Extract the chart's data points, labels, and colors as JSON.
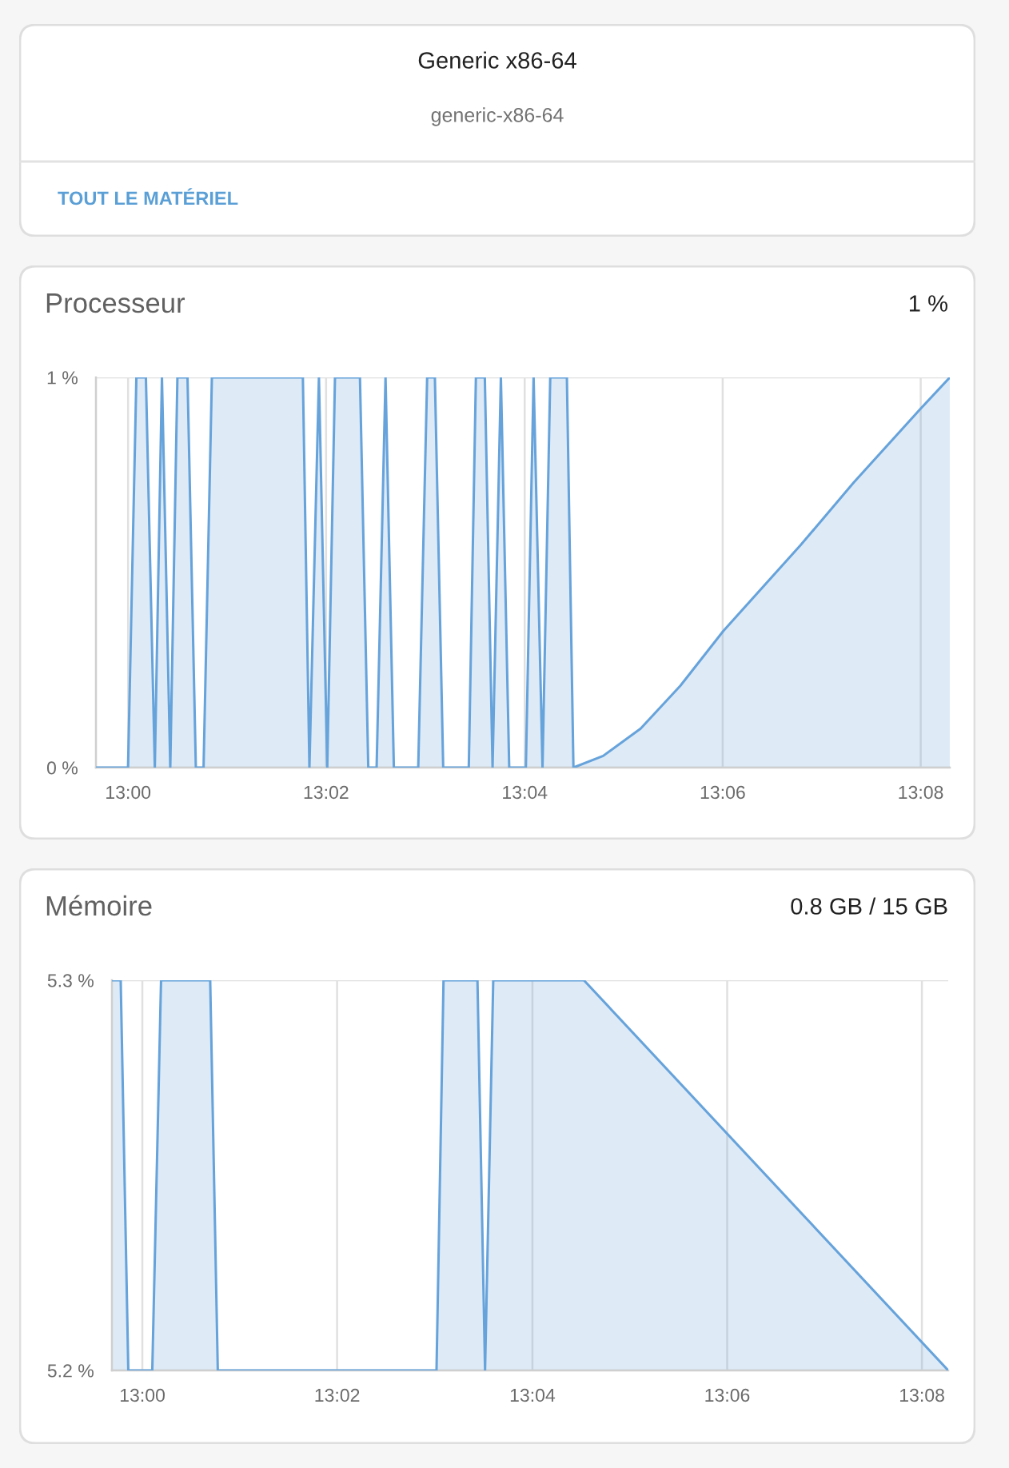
{
  "chart_data": [
    {
      "type": "other",
      "title": "Generic x86-64",
      "subtitle": "generic-x86-64",
      "annotations": [
        "TOUT LE MATÉRIEL"
      ]
    },
    {
      "type": "area",
      "title": "Processeur",
      "annotations": [
        "1 %"
      ],
      "color": "#67a3db",
      "x": [
        12.9946,
        13.0,
        13.0014,
        13.003,
        13.0045,
        13.0057,
        13.0071,
        13.0083,
        13.01,
        13.0114,
        13.0127,
        13.0141,
        13.0294,
        13.0305,
        13.0321,
        13.0335,
        13.0348,
        13.039,
        13.0404,
        13.0418,
        13.0433,
        13.0447,
        13.0488,
        13.0503,
        13.0516,
        13.053,
        13.0573,
        13.0585,
        13.06,
        13.0613,
        13.0627,
        13.0641,
        13.0669,
        13.0682,
        13.0697,
        13.071,
        13.0738,
        13.0749,
        13.0799,
        13.0862,
        13.0929,
        13.1001,
        13.1131,
        13.122,
        13.1333,
        13.1382
      ],
      "values": [
        0,
        0,
        1,
        1,
        0,
        1,
        0,
        1,
        1,
        0,
        0,
        1,
        1,
        0,
        1,
        0,
        1,
        1,
        0,
        0,
        1,
        0,
        0,
        1,
        1,
        0,
        0,
        1,
        1,
        0,
        1,
        0,
        0,
        1,
        0,
        1,
        1,
        0,
        0.03,
        0.1,
        0.21,
        0.35,
        0.57,
        0.73,
        0.92,
        1
      ],
      "xlim": [
        12.9946,
        13.1382
      ],
      "xticks": [
        {
          "value": 13,
          "label": "13:00"
        },
        {
          "value": 13.0333,
          "label": "13:02"
        },
        {
          "value": 13.0667,
          "label": "13:04"
        },
        {
          "value": 13.1,
          "label": "13:06"
        },
        {
          "value": 13.1333,
          "label": "13:08"
        }
      ],
      "ylim": [
        0,
        1
      ],
      "yticks": [
        {
          "value": 0,
          "label": "0 %"
        },
        {
          "value": 1,
          "label": "1 %"
        }
      ],
      "grid": true
    },
    {
      "type": "area",
      "title": "Mémoire",
      "annotations": [
        "0.8 GB / 15 GB"
      ],
      "color": "#67a3db",
      "x": [
        12.9948,
        12.9963,
        12.9976,
        13.0017,
        13.0032,
        13.0116,
        13.0129,
        13.0503,
        13.0515,
        13.0573,
        13.0586,
        13.06,
        13.0755,
        13.1378
      ],
      "values": [
        5.3,
        5.3,
        5.2,
        5.2,
        5.3,
        5.3,
        5.2,
        5.2,
        5.3,
        5.3,
        5.2,
        5.3,
        5.3,
        5.2
      ],
      "xlim": [
        12.9948,
        13.1378
      ],
      "xticks": [
        {
          "value": 13,
          "label": "13:00"
        },
        {
          "value": 13.0333,
          "label": "13:02"
        },
        {
          "value": 13.0667,
          "label": "13:04"
        },
        {
          "value": 13.1,
          "label": "13:06"
        },
        {
          "value": 13.1333,
          "label": "13:08"
        }
      ],
      "ylim": [
        5.2,
        5.3
      ],
      "yticks": [
        {
          "value": 5.2,
          "label": "5.2 %"
        },
        {
          "value": 5.3,
          "label": "5.3 %"
        }
      ],
      "grid": true
    }
  ]
}
